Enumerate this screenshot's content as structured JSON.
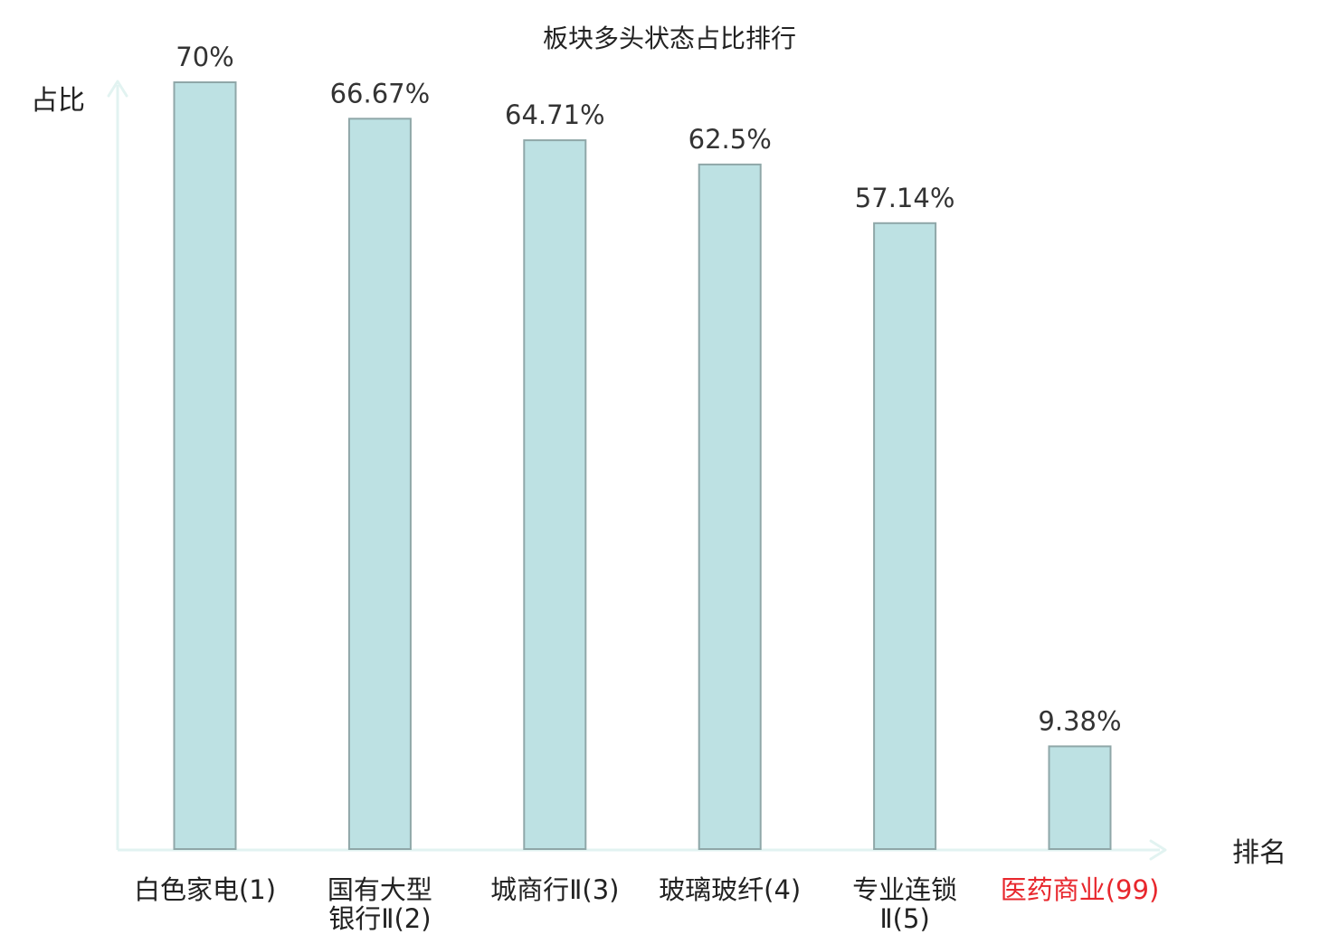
{
  "colors": {
    "bar_fill": "#bde1e3",
    "bar_stroke": "#8fa7a8",
    "axis": "#e2f3f1",
    "text": "#222222",
    "value_label": "#333333",
    "highlight": "#e8272d"
  },
  "chart_data": {
    "type": "bar",
    "title": "板块多头状态占比排行",
    "ylabel": "占比",
    "xlabel": "排名",
    "ylim": [
      0,
      70
    ],
    "grid": false,
    "legend": "none",
    "categories": [
      {
        "lines": [
          "白色家电(1)"
        ],
        "highlight": false
      },
      {
        "lines": [
          "国有大型",
          "银行Ⅱ(2)"
        ],
        "highlight": false
      },
      {
        "lines": [
          "城商行Ⅱ(3)"
        ],
        "highlight": false
      },
      {
        "lines": [
          "玻璃玻纤(4)"
        ],
        "highlight": false
      },
      {
        "lines": [
          "专业连锁",
          "Ⅱ(5)"
        ],
        "highlight": false
      },
      {
        "lines": [
          "医药商业(99)"
        ],
        "highlight": true
      }
    ],
    "values": [
      70,
      66.67,
      64.71,
      62.5,
      57.14,
      9.38
    ],
    "value_labels": [
      "70%",
      "66.67%",
      "64.71%",
      "62.5%",
      "57.14%",
      "9.38%"
    ]
  }
}
